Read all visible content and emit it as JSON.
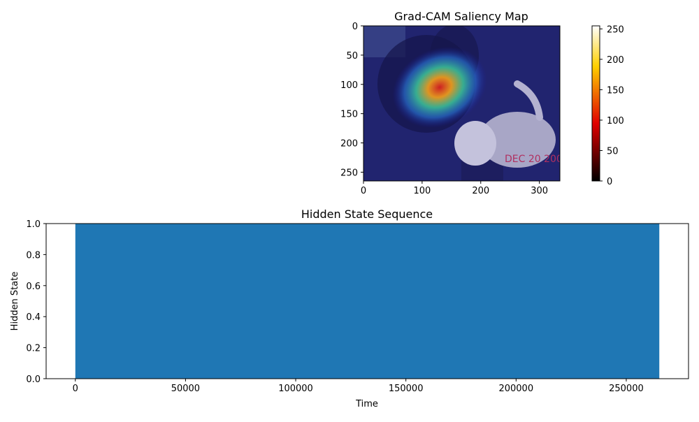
{
  "chart_data": [
    {
      "type": "heatmap",
      "title": "Grad-CAM Saliency Map",
      "image": "dogs-photo-with-gradcam-overlay",
      "image_text": "DEC 20 200",
      "xlim": [
        0,
        335
      ],
      "ylim": [
        265,
        0
      ],
      "xticks": [
        0,
        100,
        200,
        300
      ],
      "yticks": [
        0,
        50,
        100,
        150,
        200,
        250
      ],
      "hotspot": {
        "x": 130,
        "y": 105
      },
      "colorbar": {
        "colormap": "hot",
        "range": [
          0,
          255
        ],
        "ticks": [
          0,
          50,
          100,
          150,
          200,
          250
        ]
      }
    },
    {
      "type": "area",
      "title": "Hidden State Sequence",
      "xlabel": "Time",
      "ylabel": "Hidden State",
      "x": [
        0,
        265000
      ],
      "y": [
        1,
        1
      ],
      "xlim": [
        -13250,
        278250
      ],
      "ylim": [
        0,
        1
      ],
      "xticks": [
        0,
        50000,
        100000,
        150000,
        200000,
        250000
      ],
      "yticks": [
        "0.0",
        "0.2",
        "0.4",
        "0.6",
        "0.8",
        "1.0"
      ],
      "color": "#1f77b4"
    }
  ]
}
